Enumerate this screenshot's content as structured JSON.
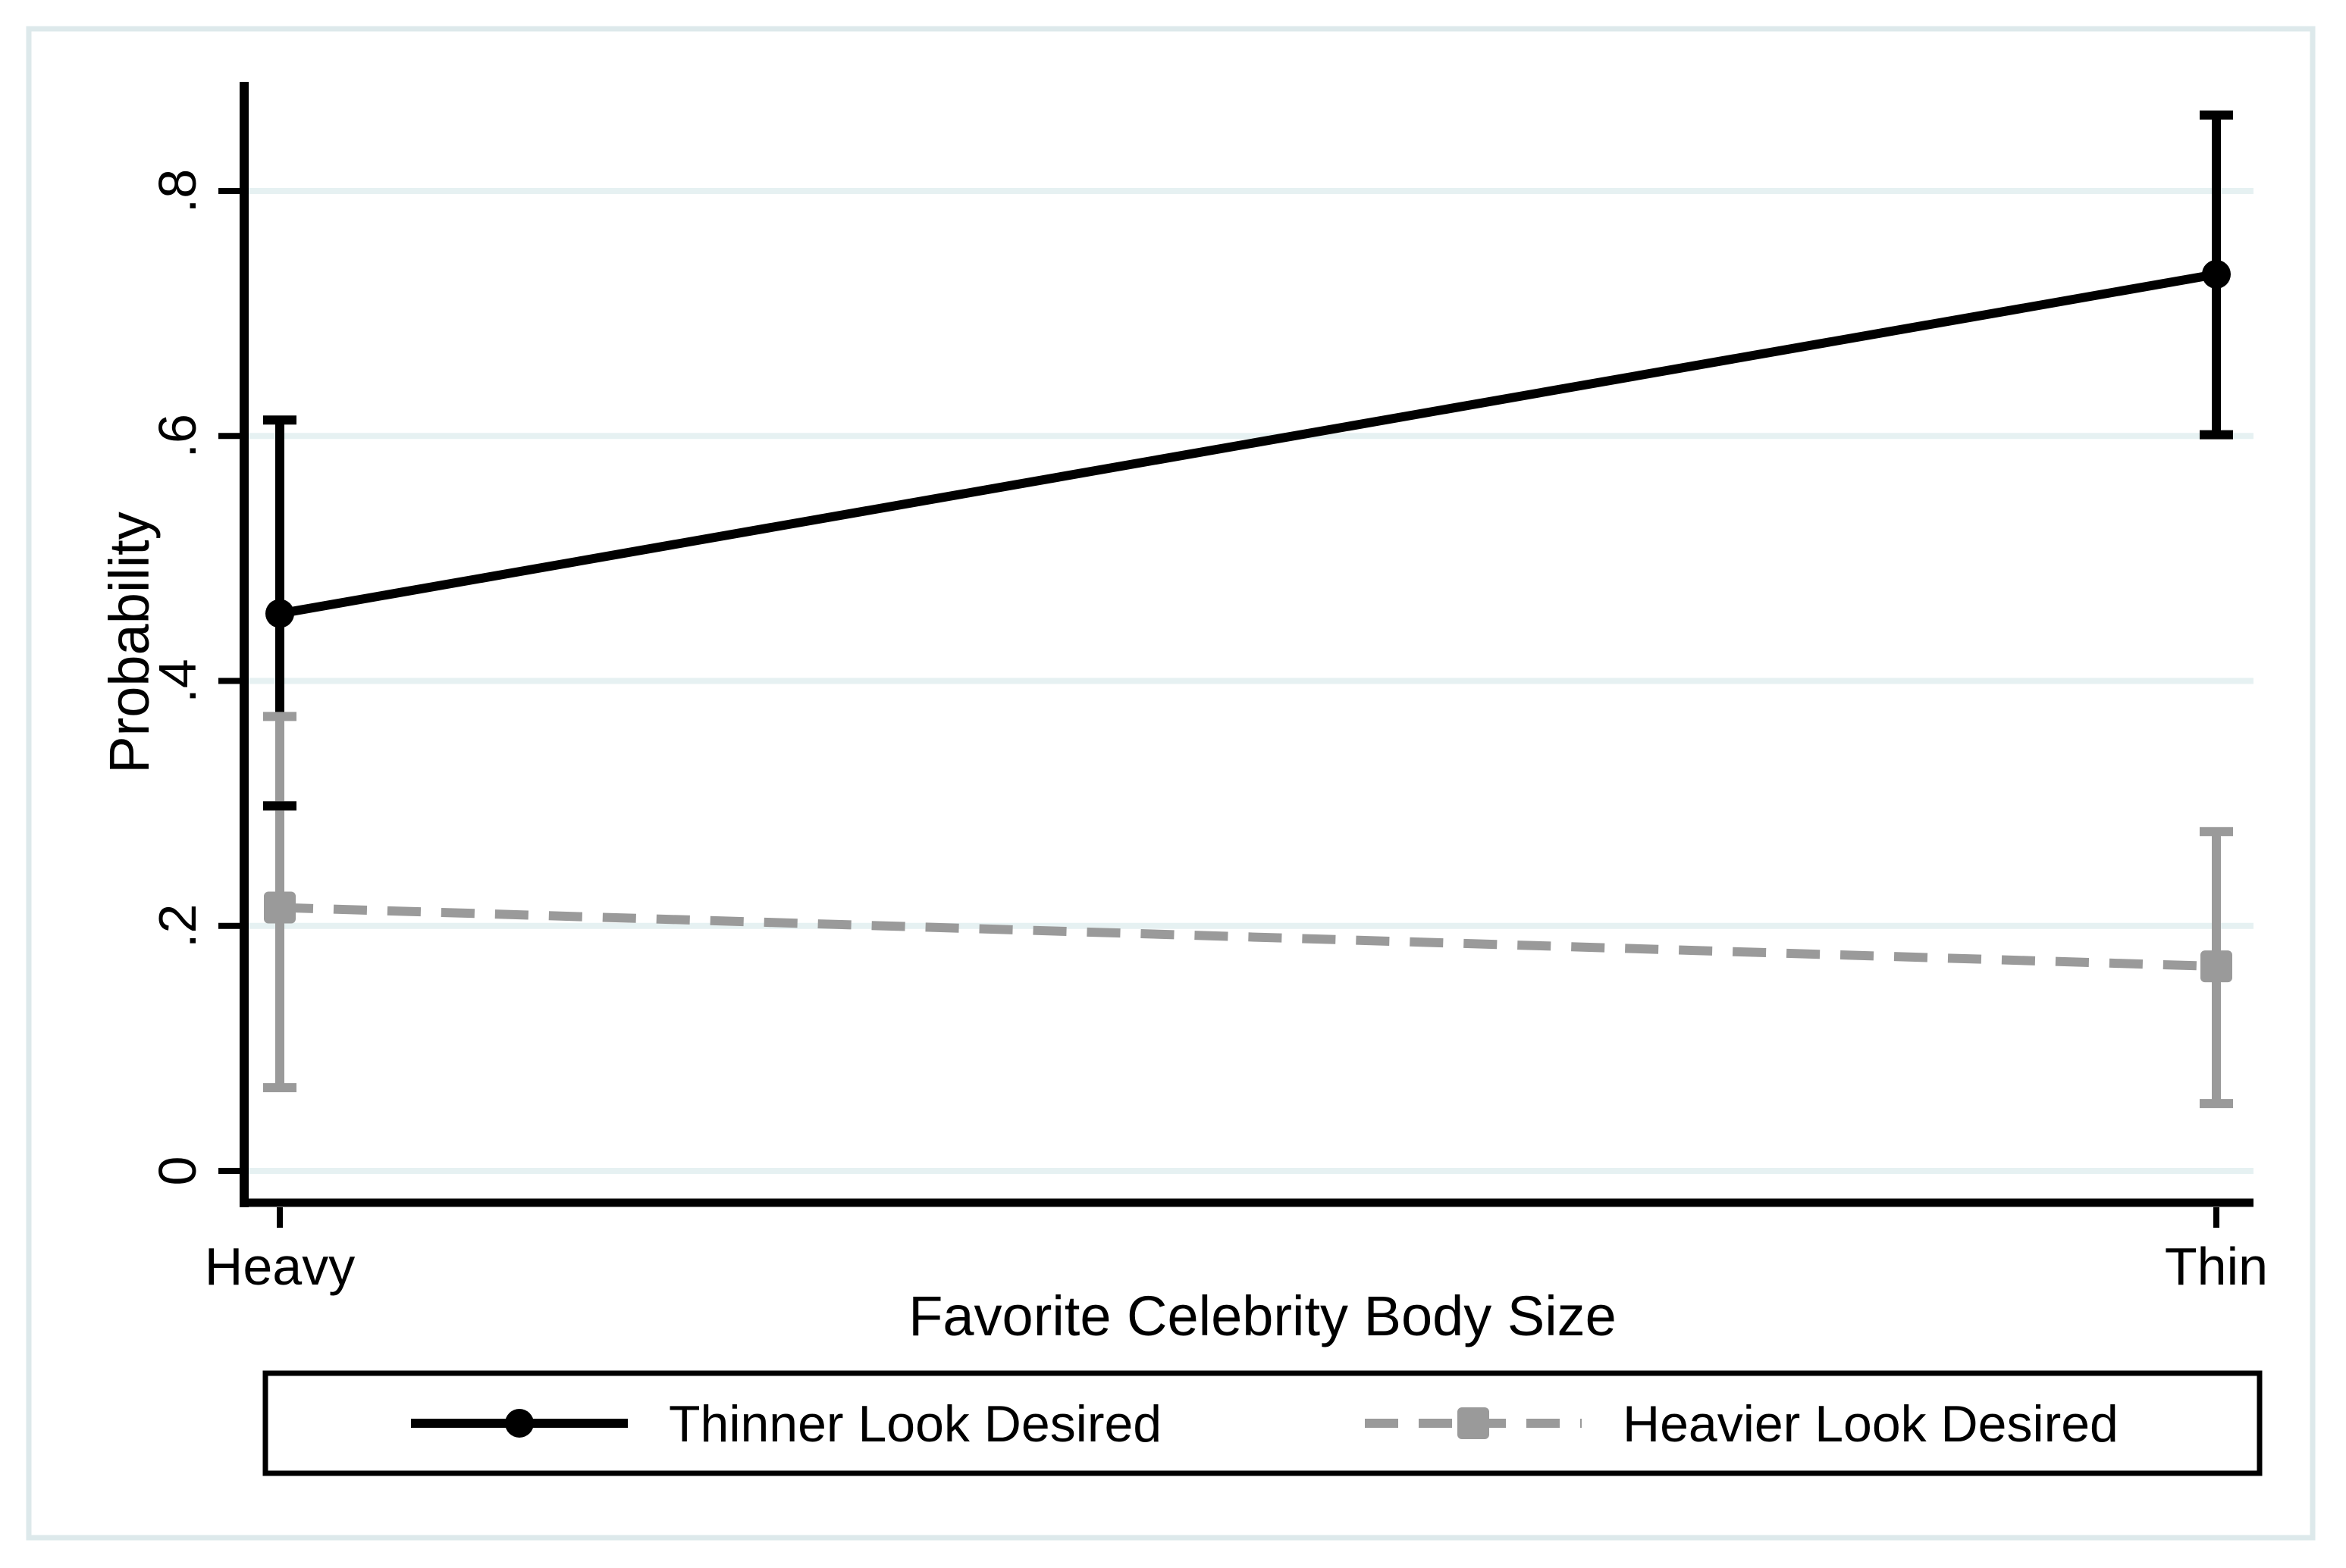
{
  "figure": {
    "background_color": "#ffffff",
    "border_color": "#dde9eb",
    "gridline_color": "#e6f1f2",
    "axis_color": "#000000",
    "legend_border_color": "#000000"
  },
  "chart_data": {
    "type": "line",
    "title": "",
    "xlabel": "Favorite Celebrity Body Size",
    "ylabel": "Probability",
    "categories": [
      "Heavy",
      "Thin"
    ],
    "ytick_values": [
      0,
      0.2,
      0.4,
      0.6,
      0.8
    ],
    "ytick_labels": [
      "0",
      ".2",
      ".4",
      ".6",
      ".8"
    ],
    "ylim": [
      0,
      0.89
    ],
    "grid": true,
    "legend_position": "bottom",
    "error_bars": true,
    "series": [
      {
        "name": "Thinner Look Desired",
        "color": "#000000",
        "line_style": "solid",
        "marker": "circle",
        "values": [
          0.455,
          0.732
        ],
        "ci_low": [
          0.298,
          0.601
        ],
        "ci_high": [
          0.613,
          0.862
        ]
      },
      {
        "name": "Heavier Look Desired",
        "color": "#9a9a9a",
        "line_style": "dashed",
        "marker": "square",
        "values": [
          0.215,
          0.167
        ],
        "ci_low": [
          0.068,
          0.055
        ],
        "ci_high": [
          0.371,
          0.277
        ]
      }
    ]
  }
}
